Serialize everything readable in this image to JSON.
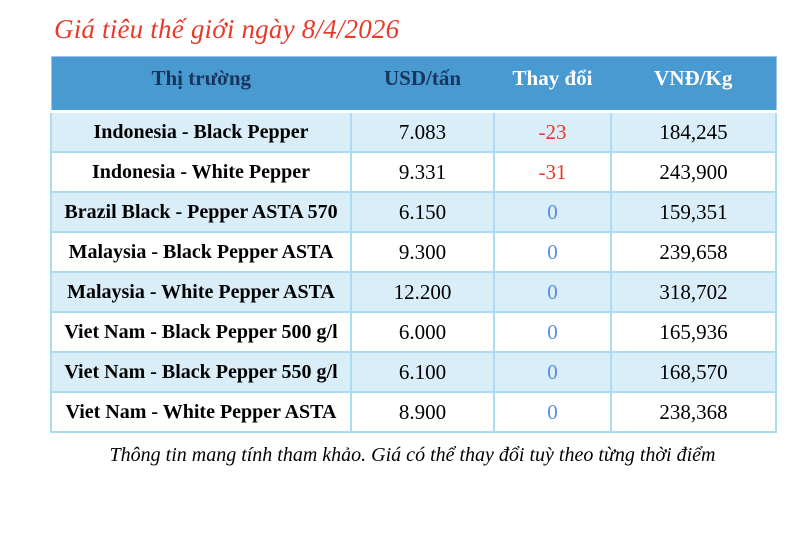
{
  "page": {
    "title": "Giá tiêu thế giới ngày 8/4/2026",
    "footer_note": "Thông tin mang tính tham khảo. Giá có thể thay đổi tuỳ theo từng thời điểm"
  },
  "chart_data": {
    "type": "table",
    "title": "Giá tiêu thế giới ngày 8/4/2026",
    "columns": [
      "Thị trường",
      "USD/tấn",
      "Thay đổi",
      "VNĐ/Kg"
    ],
    "rows": [
      [
        "Indonesia - Black Pepper",
        "7.083",
        "-23",
        "184,245"
      ],
      [
        "Indonesia - White Pepper",
        "9.331",
        "-31",
        "243,900"
      ],
      [
        "Brazil Black - Pepper ASTA 570",
        "6.150",
        "0",
        "159,351"
      ],
      [
        "Malaysia - Black Pepper ASTA",
        "9.300",
        "0",
        "239,658"
      ],
      [
        "Malaysia - White Pepper ASTA",
        "12.200",
        "0",
        "318,702"
      ],
      [
        "Viet Nam - Black Pepper 500 g/l",
        "6.000",
        "0",
        "165,936"
      ],
      [
        "Viet Nam - Black Pepper 550 g/l",
        "6.100",
        "0",
        "168,570"
      ],
      [
        "Viet Nam - White Pepper ASTA",
        "8.900",
        "0",
        "238,368"
      ]
    ],
    "notes": "Thông tin mang tính tham khảo. Giá có thể thay đổi tuỳ theo từng thời điểm",
    "layout_hints": {
      "row_striping": "odd rows light blue, even rows white",
      "negative_values_color": "red",
      "zero_values_color": "blue",
      "header_text_colors": [
        "navy",
        "navy",
        "white",
        "white"
      ]
    }
  },
  "colors": {
    "title_red": "#e8392a",
    "header_bg": "#4a9ad2",
    "header_text_navy": "#17365d",
    "header_text_white": "#ffffff",
    "row_alt_bg": "#d9eef8",
    "row_bg": "#ffffff",
    "grid_border": "#aadcf2",
    "outer_border": "#9dc3e6",
    "negative_change": "#ee3424",
    "zero_change": "#5b8fd4",
    "body_text": "#000000"
  }
}
